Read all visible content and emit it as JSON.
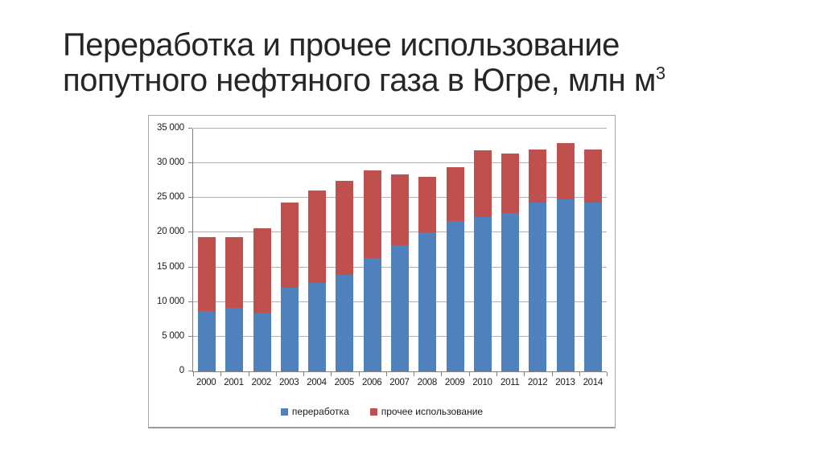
{
  "slide": {
    "title_line1": "Переработка и прочее использование",
    "title_line2": "попутного нефтяного газа в Югре, млн м",
    "title_superscript": "3"
  },
  "chart_data": {
    "type": "bar",
    "stacked": true,
    "title": "Переработка и прочее использование попутного нефтяного газа в Югре, млн м3",
    "categories": [
      "2000",
      "2001",
      "2002",
      "2003",
      "2004",
      "2005",
      "2006",
      "2007",
      "2008",
      "2009",
      "2010",
      "2011",
      "2012",
      "2013",
      "2014"
    ],
    "series": [
      {
        "name": "переработка",
        "color": "#4F81BD",
        "values": [
          8700,
          9200,
          8500,
          12100,
          12800,
          13900,
          16400,
          18200,
          20000,
          21700,
          22200,
          22800,
          24300,
          24800,
          24300
        ]
      },
      {
        "name": "прочее использование",
        "color": "#C0504D",
        "values": [
          10700,
          10200,
          12100,
          12200,
          13300,
          13600,
          12600,
          10200,
          8000,
          7800,
          9700,
          8600,
          7700,
          8100,
          7700
        ]
      }
    ],
    "totals": [
      19400,
      19400,
      20600,
      24300,
      26100,
      27500,
      29000,
      28400,
      28000,
      29500,
      31900,
      31400,
      32000,
      32900,
      32000
    ],
    "xlabel": "",
    "ylabel": "",
    "ylim": [
      0,
      35000
    ],
    "ytick_step": 5000,
    "ytick_labels": [
      "0",
      "5 000",
      "10 000",
      "15 000",
      "20 000",
      "25 000",
      "30 000",
      "35 000"
    ],
    "grid": true,
    "legend_position": "bottom",
    "colors": {
      "axis": "#808080",
      "gridline": "#b0b0b0",
      "chart_border": "#a6a6a6"
    }
  }
}
